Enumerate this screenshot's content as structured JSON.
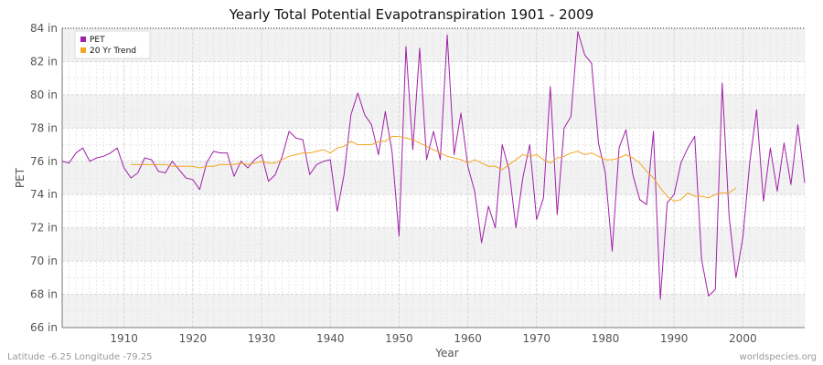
{
  "chart_data": {
    "type": "line",
    "title": "Yearly Total Potential Evapotranspiration 1901 - 2009",
    "xlabel": "Year",
    "ylabel": "PET",
    "xlim": [
      1901,
      2009
    ],
    "ylim": [
      66,
      84
    ],
    "x_ticks": [
      1910,
      1920,
      1930,
      1940,
      1950,
      1960,
      1970,
      1980,
      1990,
      2000
    ],
    "y_ticks": [
      66,
      68,
      70,
      72,
      74,
      76,
      78,
      80,
      82,
      84
    ],
    "y_tick_labels": [
      "66 in",
      "68 in",
      "70 in",
      "72 in",
      "74 in",
      "76 in",
      "78 in",
      "80 in",
      "82 in",
      "84 in"
    ],
    "grid": true,
    "legend_position": "top-left",
    "series": [
      {
        "name": "PET",
        "color": "#a020a8",
        "x": [
          1901,
          1902,
          1903,
          1904,
          1905,
          1906,
          1907,
          1908,
          1909,
          1910,
          1911,
          1912,
          1913,
          1914,
          1915,
          1916,
          1917,
          1918,
          1919,
          1920,
          1921,
          1922,
          1923,
          1924,
          1925,
          1926,
          1927,
          1928,
          1929,
          1930,
          1931,
          1932,
          1933,
          1934,
          1935,
          1936,
          1937,
          1938,
          1939,
          1940,
          1941,
          1942,
          1943,
          1944,
          1945,
          1946,
          1947,
          1948,
          1949,
          1950,
          1951,
          1952,
          1953,
          1954,
          1955,
          1956,
          1957,
          1958,
          1959,
          1960,
          1961,
          1962,
          1963,
          1964,
          1965,
          1966,
          1967,
          1968,
          1969,
          1970,
          1971,
          1972,
          1973,
          1974,
          1975,
          1976,
          1977,
          1978,
          1979,
          1980,
          1981,
          1982,
          1983,
          1984,
          1985,
          1986,
          1987,
          1988,
          1989,
          1990,
          1991,
          1992,
          1993,
          1994,
          1995,
          1996,
          1997,
          1998,
          1999,
          2000,
          2001,
          2002,
          2003,
          2004,
          2005,
          2006,
          2007,
          2008,
          2009
        ],
        "values": [
          76.0,
          75.9,
          76.5,
          76.8,
          76.0,
          76.2,
          76.3,
          76.5,
          76.8,
          75.6,
          75.0,
          75.3,
          76.2,
          76.1,
          75.4,
          75.3,
          76.0,
          75.5,
          75.0,
          74.9,
          74.3,
          75.9,
          76.6,
          76.5,
          76.5,
          75.1,
          76.0,
          75.6,
          76.1,
          76.4,
          74.8,
          75.2,
          76.3,
          77.8,
          77.4,
          77.3,
          75.2,
          75.8,
          76.0,
          76.1,
          73.0,
          75.2,
          78.8,
          80.1,
          78.8,
          78.2,
          76.4,
          79.0,
          76.5,
          71.5,
          82.9,
          76.7,
          82.8,
          76.1,
          77.8,
          76.1,
          83.6,
          76.4,
          78.9,
          75.7,
          74.2,
          71.1,
          73.3,
          72.0,
          77.0,
          75.5,
          72.0,
          75.0,
          77.0,
          72.5,
          73.8,
          80.5,
          72.8,
          78.0,
          78.7,
          83.8,
          82.4,
          81.9,
          77.1,
          75.3,
          70.6,
          76.8,
          77.9,
          75.2,
          73.7,
          73.4,
          77.8,
          67.7,
          73.5,
          74.0,
          75.9,
          76.8,
          77.5,
          70.1,
          67.9,
          68.3,
          80.7,
          72.7,
          69.0,
          71.4,
          75.9,
          79.1,
          73.6,
          76.8,
          74.2,
          77.1,
          74.6,
          78.2,
          74.7
        ]
      },
      {
        "name": "20 Yr Trend",
        "color": "#f5a623",
        "x": [
          1911,
          1912,
          1913,
          1914,
          1915,
          1916,
          1917,
          1918,
          1919,
          1920,
          1921,
          1922,
          1923,
          1924,
          1925,
          1926,
          1927,
          1928,
          1929,
          1930,
          1931,
          1932,
          1933,
          1934,
          1935,
          1936,
          1937,
          1938,
          1939,
          1940,
          1941,
          1942,
          1943,
          1944,
          1945,
          1946,
          1947,
          1948,
          1949,
          1950,
          1951,
          1952,
          1953,
          1954,
          1955,
          1956,
          1957,
          1958,
          1959,
          1960,
          1961,
          1962,
          1963,
          1964,
          1965,
          1966,
          1967,
          1968,
          1969,
          1970,
          1971,
          1972,
          1973,
          1974,
          1975,
          1976,
          1977,
          1978,
          1979,
          1980,
          1981,
          1982,
          1983,
          1984,
          1985,
          1986,
          1987,
          1988,
          1989,
          1990,
          1991,
          1992,
          1993,
          1994,
          1995,
          1996,
          1997,
          1998,
          1999
        ],
        "values": [
          75.8,
          75.8,
          75.8,
          75.8,
          75.8,
          75.8,
          75.7,
          75.7,
          75.7,
          75.7,
          75.6,
          75.7,
          75.7,
          75.8,
          75.8,
          75.8,
          75.9,
          75.8,
          75.9,
          76.0,
          75.9,
          75.9,
          76.1,
          76.3,
          76.4,
          76.5,
          76.5,
          76.6,
          76.7,
          76.5,
          76.8,
          76.9,
          77.2,
          77.0,
          77.0,
          77.0,
          77.2,
          77.2,
          77.5,
          77.5,
          77.4,
          77.3,
          77.1,
          76.9,
          76.7,
          76.5,
          76.3,
          76.2,
          76.1,
          75.9,
          76.1,
          75.9,
          75.7,
          75.7,
          75.5,
          75.8,
          76.1,
          76.4,
          76.3,
          76.4,
          76.1,
          75.9,
          76.2,
          76.3,
          76.5,
          76.6,
          76.4,
          76.5,
          76.3,
          76.1,
          76.1,
          76.2,
          76.4,
          76.2,
          75.9,
          75.4,
          75.0,
          74.4,
          73.9,
          73.6,
          73.7,
          74.1,
          73.9,
          73.9,
          73.8,
          74.0,
          74.1,
          74.1,
          74.4
        ]
      }
    ]
  },
  "footer": {
    "coordinates": "Latitude -6.25 Longitude -79.25",
    "source": "worldspecies.org"
  }
}
